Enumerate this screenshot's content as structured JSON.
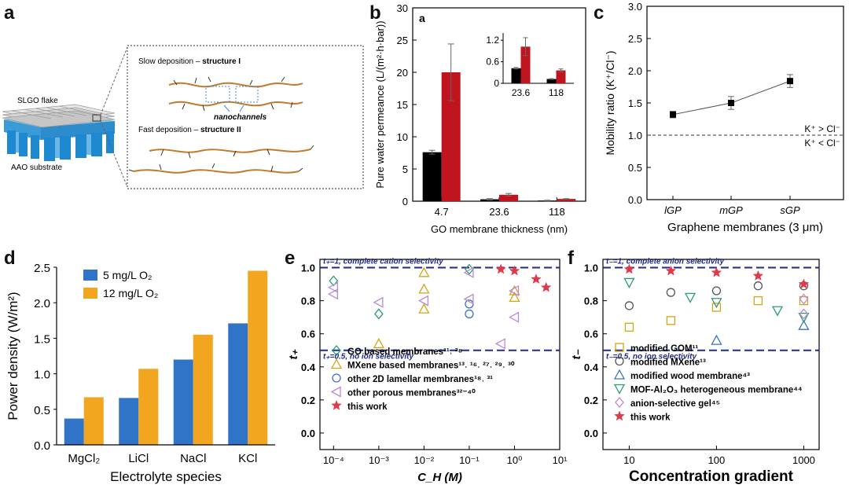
{
  "panel_labels": {
    "a": "a",
    "b": "b",
    "c": "c",
    "d": "d",
    "e": "e",
    "f": "f"
  },
  "schematic": {
    "flake_label": "SLGO flake",
    "substrate_label": "AAO substrate",
    "slow_prefix": "Slow deposition – ",
    "slow_structure": "structure I",
    "nanochannels": "nanochannels",
    "fast_prefix": "Fast  deposition – ",
    "fast_structure": "structure II"
  },
  "chart_data": [
    {
      "panel": "b",
      "type": "bar",
      "subpanel_letter": "a",
      "categories": [
        "4.7",
        "23.6",
        "118"
      ],
      "series": [
        {
          "name": "black",
          "color": "#000000",
          "values": [
            7.6,
            0.3,
            0.1
          ],
          "errors": [
            0.3,
            0.1,
            0.05
          ]
        },
        {
          "name": "red",
          "color": "#c0141e",
          "values": [
            20.0,
            1.0,
            0.35
          ],
          "errors": [
            4.4,
            0.2,
            0.05
          ]
        }
      ],
      "ylim": [
        0,
        30
      ],
      "yticks": [
        "0",
        "5",
        "10",
        "15",
        "20",
        "25",
        "30"
      ],
      "ylabel": "Pure water permeance (L/(m²·h·bar))",
      "xlabel": "GO membrane thickness (nm)",
      "inset": {
        "categories": [
          "23.6",
          "118"
        ],
        "series": [
          {
            "values": [
              0.42,
              0.12
            ],
            "errors": [
              0.02,
              0.01
            ]
          },
          {
            "values": [
              1.02,
              0.36
            ],
            "errors": [
              0.25,
              0.04
            ]
          }
        ],
        "ylim": [
          0,
          1.4
        ],
        "yticks": [
          "0",
          "0.6",
          "1.2"
        ]
      }
    },
    {
      "panel": "c",
      "type": "line",
      "categories": [
        "lGP",
        "mGP",
        "sGP"
      ],
      "values": [
        1.32,
        1.5,
        1.84
      ],
      "errors": [
        0.05,
        0.1,
        0.1
      ],
      "ylim": [
        0,
        3.0
      ],
      "yticks": [
        "0.0",
        "0.5",
        "1.0",
        "1.5",
        "2.0",
        "2.5",
        "3.0"
      ],
      "reference_line": 1.0,
      "ref_label_above": "K⁺ > Cl⁻",
      "ref_label_below": "K⁺ < Cl⁻",
      "ylabel": "Mobility ratio (K⁺/Cl⁻)",
      "xlabel": "Graphene membranes (3 μm)"
    },
    {
      "panel": "d",
      "type": "bar",
      "categories": [
        "MgCl₂",
        "LiCl",
        "NaCl",
        "KCl"
      ],
      "series": [
        {
          "name": "5 mg/L O₂",
          "color": "#2f74c7",
          "values": [
            0.37,
            0.66,
            1.2,
            1.71
          ]
        },
        {
          "name": "12 mg/L O₂",
          "color": "#f2a51e",
          "values": [
            0.67,
            1.07,
            1.55,
            2.45
          ]
        }
      ],
      "ylim": [
        0,
        2.5
      ],
      "yticks": [
        "0.0",
        "0.5",
        "1.0",
        "1.5",
        "2.0",
        "2.5"
      ],
      "ylabel": "Power density (W/m²)",
      "xlabel": "Electrolyte species"
    },
    {
      "panel": "e",
      "type": "scatter",
      "xscale": "log",
      "xlim": [
        5e-05,
        10
      ],
      "xticks": [
        0.0001,
        0.001,
        0.01,
        0.1,
        1,
        10
      ],
      "xticklabels": [
        "10⁻⁴",
        "10⁻³",
        "10⁻²",
        "10⁻¹",
        "10⁰",
        "10¹"
      ],
      "ylim": [
        -0.1,
        1.05
      ],
      "yticks": [
        "0.0",
        "0.2",
        "0.4",
        "0.6",
        "0.8",
        "1.0"
      ],
      "ylabel": "t₊",
      "xlabel": "C_H (M)",
      "hlines": [
        {
          "y": 1.0,
          "label": "t₊=1, complete cation selectivity"
        },
        {
          "y": 0.5,
          "label": "t₊=0.5, no ion selectivity"
        }
      ],
      "series": [
        {
          "name": "GO based membranes¹¹˒ ²⁸",
          "marker": "diamond",
          "color": "#2a9d6f",
          "points": [
            [
              0.0001,
              0.92
            ],
            [
              0.001,
              0.72
            ],
            [
              0.1,
              0.99
            ]
          ]
        },
        {
          "name": "MXene based membranes¹³˒ ¹⁶˒ ²⁷˒ ²⁹˒ ³⁰",
          "marker": "triangle-up",
          "color": "#d4a514",
          "points": [
            [
              0.001,
              0.54
            ],
            [
              0.01,
              0.97
            ],
            [
              0.01,
              0.87
            ],
            [
              0.01,
              0.75
            ],
            [
              1.0,
              0.82
            ],
            [
              1.0,
              0.86
            ]
          ]
        },
        {
          "name": "other 2D lamellar membranes¹⁸˒ ³¹",
          "marker": "circle",
          "color": "#3a72c4",
          "points": [
            [
              0.1,
              0.78
            ],
            [
              0.1,
              0.72
            ]
          ]
        },
        {
          "name": "other porous membranes³²⁻⁴⁰",
          "marker": "triangle-left",
          "color": "#b98ad6",
          "points": [
            [
              0.0001,
              0.84
            ],
            [
              0.0001,
              0.88
            ],
            [
              0.001,
              0.79
            ],
            [
              0.01,
              0.8
            ],
            [
              0.1,
              0.81
            ],
            [
              0.1,
              0.97
            ],
            [
              0.5,
              0.54
            ],
            [
              1.0,
              0.86
            ],
            [
              1.0,
              0.7
            ]
          ]
        },
        {
          "name": "this work",
          "marker": "star",
          "color": "#e0394a",
          "points": [
            [
              0.5,
              0.99
            ],
            [
              1.0,
              0.98
            ],
            [
              3.0,
              0.93
            ],
            [
              5.0,
              0.88
            ]
          ]
        }
      ]
    },
    {
      "panel": "f",
      "type": "scatter",
      "xscale": "log",
      "xlim": [
        5,
        1500
      ],
      "xticks": [
        10,
        100,
        1000
      ],
      "xticklabels": [
        "10",
        "100",
        "1000"
      ],
      "ylim": [
        -0.1,
        1.05
      ],
      "yticks": [
        "0.0",
        "0.2",
        "0.4",
        "0.6",
        "0.8",
        "1.0"
      ],
      "ylabel": "t₋",
      "xlabel": "Concentration gradient",
      "hlines": [
        {
          "y": 1.0,
          "label": "t₋=1, complete anion selectivity"
        },
        {
          "y": 0.5,
          "label": "t₋=0.5, no ion selectivity"
        }
      ],
      "series": [
        {
          "name": "modified GOM¹¹",
          "marker": "square",
          "color": "#d4a514",
          "points": [
            [
              10,
              0.64
            ],
            [
              30,
              0.68
            ],
            [
              100,
              0.76
            ],
            [
              300,
              0.8
            ],
            [
              1000,
              0.8
            ]
          ]
        },
        {
          "name": "modified MXene¹³",
          "marker": "circle",
          "color": "#555555",
          "points": [
            [
              10,
              0.77
            ],
            [
              30,
              0.85
            ],
            [
              100,
              0.86
            ],
            [
              300,
              0.89
            ],
            [
              1000,
              0.89
            ]
          ]
        },
        {
          "name": "modified wood membrane⁴³",
          "marker": "triangle-up",
          "color": "#3a72c4",
          "points": [
            [
              100,
              0.56
            ],
            [
              1000,
              0.65
            ]
          ]
        },
        {
          "name": "MOF-Al₂O₃ heterogeneous membrane⁴⁴",
          "marker": "triangle-down",
          "color": "#2a9d6f",
          "points": [
            [
              10,
              0.91
            ],
            [
              50,
              0.82
            ],
            [
              100,
              0.79
            ],
            [
              500,
              0.74
            ],
            [
              1000,
              0.7
            ]
          ]
        },
        {
          "name": "anion-selective gel⁴⁵",
          "marker": "diamond",
          "color": "#b98ad6",
          "points": [
            [
              1000,
              0.81
            ],
            [
              1000,
              0.72
            ]
          ]
        },
        {
          "name": "this work",
          "marker": "star",
          "color": "#e0394a",
          "points": [
            [
              10,
              0.99
            ],
            [
              30,
              0.98
            ],
            [
              100,
              0.97
            ],
            [
              300,
              0.95
            ],
            [
              1000,
              0.9
            ]
          ]
        }
      ]
    }
  ]
}
